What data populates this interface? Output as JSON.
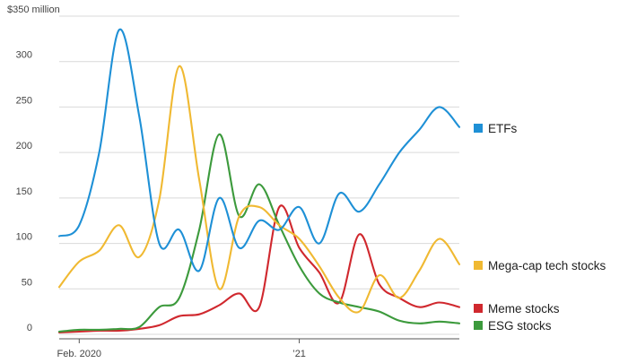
{
  "chart_data": {
    "type": "line",
    "title": "",
    "xlabel": "",
    "ylabel": "$350 million",
    "ylim": [
      0,
      350
    ],
    "y_ticks": [
      {
        "value": 0,
        "label": "0"
      },
      {
        "value": 50,
        "label": "50"
      },
      {
        "value": 100,
        "label": "100"
      },
      {
        "value": 150,
        "label": "150"
      },
      {
        "value": 200,
        "label": "200"
      },
      {
        "value": 250,
        "label": "250"
      },
      {
        "value": 300,
        "label": "300"
      },
      {
        "value": 350,
        "label": "$350 million"
      }
    ],
    "x_ticks": [
      {
        "value": "2020-02",
        "label": "Feb. 2020"
      },
      {
        "value": "2021-01",
        "label": "’21"
      }
    ],
    "xlim": [
      "2020-01",
      "2021-09"
    ],
    "grid": true,
    "legend_position": "right, beside each line end",
    "x": [
      "2020-01",
      "2020-02",
      "2020-03",
      "2020-04",
      "2020-05",
      "2020-06",
      "2020-07",
      "2020-08",
      "2020-09",
      "2020-10",
      "2020-11",
      "2020-12",
      "2021-01",
      "2021-02",
      "2021-03",
      "2021-04",
      "2021-05",
      "2021-06",
      "2021-07",
      "2021-08",
      "2021-09"
    ],
    "series": [
      {
        "name": "ETFs",
        "color": "#1e90d6",
        "values": [
          108,
          120,
          200,
          335,
          240,
          100,
          115,
          70,
          150,
          95,
          125,
          115,
          140,
          100,
          155,
          135,
          165,
          200,
          225,
          250,
          228
        ]
      },
      {
        "name": "Mega-cap tech stocks",
        "color": "#f0b932",
        "values": [
          52,
          80,
          92,
          120,
          85,
          148,
          295,
          170,
          50,
          130,
          140,
          120,
          105,
          75,
          40,
          25,
          65,
          40,
          70,
          105,
          77
        ]
      },
      {
        "name": "Meme stocks",
        "color": "#d0282e",
        "values": [
          2,
          3,
          4,
          4,
          6,
          10,
          20,
          22,
          32,
          45,
          30,
          140,
          95,
          68,
          35,
          110,
          55,
          40,
          30,
          35,
          30
        ]
      },
      {
        "name": "ESG stocks",
        "color": "#3c9a3c",
        "values": [
          3,
          5,
          5,
          6,
          8,
          30,
          40,
          115,
          220,
          130,
          165,
          120,
          75,
          45,
          35,
          30,
          25,
          15,
          12,
          14,
          12
        ]
      }
    ]
  }
}
